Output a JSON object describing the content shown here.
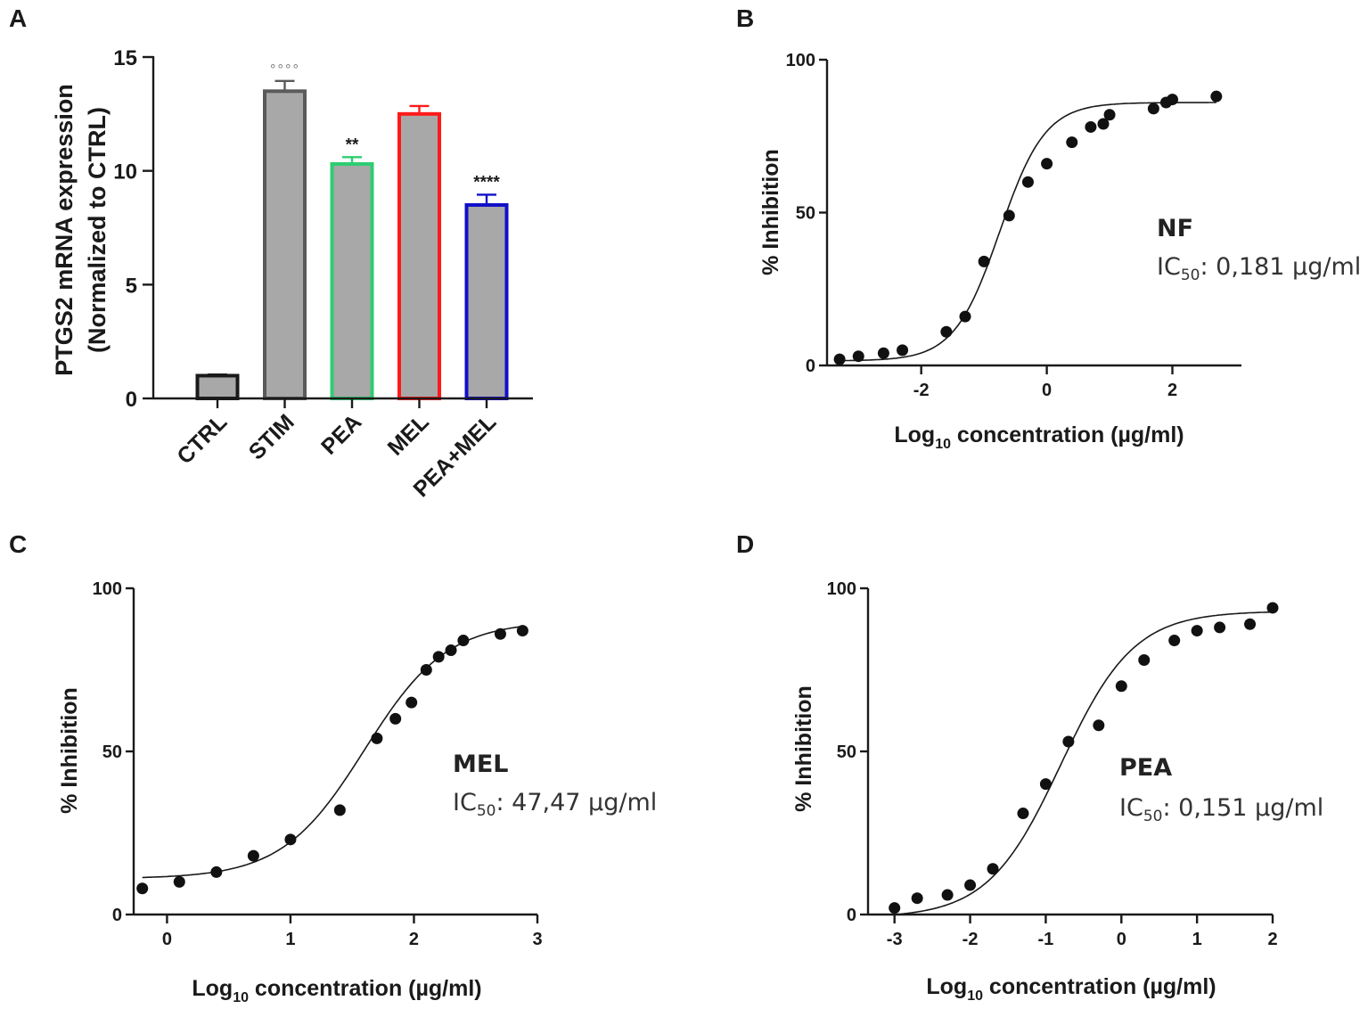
{
  "panels": {
    "A": {
      "letter": "A",
      "chart_data": {
        "type": "bar",
        "title": "",
        "xlabel": "",
        "ylabel_line1": "PTGS2 mRNA expression",
        "ylabel_line2": "(Normalized to CTRL)",
        "ylim": [
          0,
          15
        ],
        "yticks": [
          "0",
          "5",
          "10",
          "15"
        ],
        "categories": [
          "CTRL",
          "STIM",
          "PEA",
          "MEL",
          "PEA+MEL"
        ],
        "values": [
          1.0,
          13.5,
          10.3,
          12.5,
          8.5
        ],
        "errors": [
          0.05,
          0.45,
          0.3,
          0.35,
          0.45
        ],
        "outline_colors": [
          "#1a1a1a",
          "#5a5a5a",
          "#2ecc71",
          "#ff1a1a",
          "#1010c8"
        ],
        "significance": [
          "",
          "°°°°",
          "**",
          "",
          "****"
        ]
      }
    },
    "B": {
      "letter": "B",
      "annotation": {
        "name": "NF",
        "ic_prefix": "IC",
        "ic_sub": "50",
        "ic_value": ": 0,181 µg/ml"
      },
      "chart_data": {
        "type": "scatter",
        "xlabel_prefix": "Log",
        "xlabel_sub": "10",
        "xlabel_suffix": " concentration (µg/ml)",
        "ylabel": "% Inhibition",
        "xlim": [
          -3.5,
          3.1
        ],
        "ylim": [
          0,
          100
        ],
        "xticks": [
          "-2",
          "0",
          "2"
        ],
        "yticks": [
          "0",
          "50",
          "100"
        ],
        "x": [
          -3.3,
          -3.0,
          -2.6,
          -2.3,
          -1.6,
          -1.3,
          -1.0,
          -0.6,
          -0.3,
          0.0,
          0.4,
          0.7,
          0.9,
          1.0,
          1.7,
          1.9,
          2.0,
          2.7
        ],
        "y": [
          2,
          3,
          4,
          5,
          11,
          16,
          34,
          49,
          60,
          66,
          73,
          78,
          79,
          82,
          84,
          86,
          87,
          88
        ],
        "fit": {
          "bottom": 1.5,
          "top": 86,
          "logIC50": -0.75,
          "hill": 1.2
        }
      }
    },
    "C": {
      "letter": "C",
      "annotation": {
        "name": "MEL",
        "ic_prefix": "IC",
        "ic_sub": "50",
        "ic_value": ": 47,47 µg/ml"
      },
      "chart_data": {
        "type": "scatter",
        "xlabel_prefix": "Log",
        "xlabel_sub": "10",
        "xlabel_suffix": " concentration (µg/ml)",
        "ylabel": "% Inhibition",
        "xlim": [
          -0.27,
          3.0
        ],
        "ylim": [
          0,
          100
        ],
        "xticks": [
          "0",
          "1",
          "2",
          "3"
        ],
        "yticks": [
          "0",
          "50",
          "100"
        ],
        "x": [
          -0.2,
          0.1,
          0.4,
          0.7,
          1.0,
          1.4,
          1.7,
          1.85,
          1.98,
          2.1,
          2.2,
          2.3,
          2.4,
          2.7,
          2.88
        ],
        "y": [
          8,
          10,
          13,
          18,
          23,
          32,
          54,
          60,
          65,
          75,
          79,
          81,
          84,
          86,
          87
        ],
        "fit": {
          "bottom": 11,
          "top": 90,
          "logIC50": 1.6,
          "hill": 1.3
        }
      }
    },
    "D": {
      "letter": "D",
      "annotation": {
        "name": "PEA",
        "ic_prefix": "IC",
        "ic_sub": "50",
        "ic_value": ": 0,151 µg/ml"
      },
      "chart_data": {
        "type": "scatter",
        "xlabel_prefix": "Log",
        "xlabel_sub": "10",
        "xlabel_suffix": " concentration (µg/ml)",
        "ylabel": "% Inhibition",
        "xlim": [
          -3.35,
          2.0
        ],
        "ylim": [
          0,
          100
        ],
        "xticks": [
          "-3",
          "-2",
          "-1",
          "0",
          "1",
          "2"
        ],
        "yticks": [
          "0",
          "50",
          "100"
        ],
        "x": [
          -3.0,
          -2.7,
          -2.3,
          -2.0,
          -1.7,
          -1.3,
          -1.0,
          -0.7,
          -0.3,
          0.0,
          0.3,
          0.7,
          1.0,
          1.3,
          1.7,
          2.0
        ],
        "y": [
          2,
          5,
          6,
          9,
          14,
          31,
          40,
          53,
          58,
          70,
          78,
          84,
          87,
          88,
          89,
          94
        ],
        "fit": {
          "bottom": -1,
          "top": 93,
          "logIC50": -0.8,
          "hill": 0.9
        }
      }
    }
  }
}
